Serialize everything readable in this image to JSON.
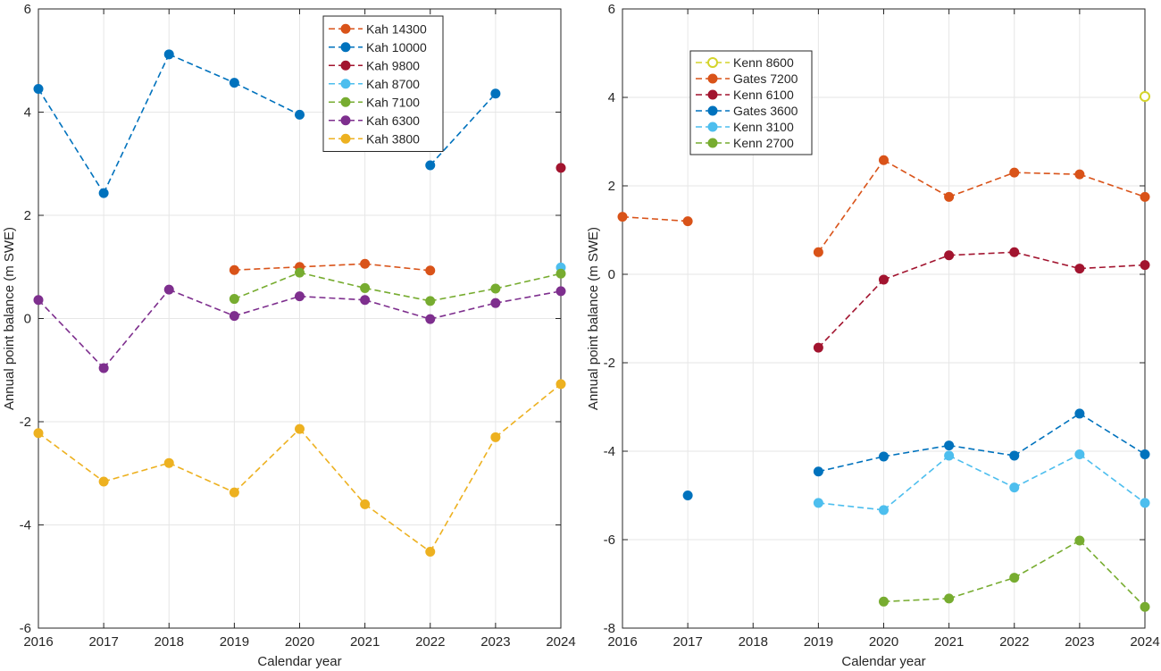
{
  "chart_data": [
    {
      "type": "line",
      "xlabel": "Calendar year",
      "ylabel": "Annual point balance (m SWE)",
      "xlim": [
        2016,
        2024
      ],
      "ylim": [
        -6,
        6
      ],
      "xticks": [
        "2016",
        "2017",
        "2018",
        "2019",
        "2020",
        "2021",
        "2022",
        "2023",
        "2024"
      ],
      "yticks": [
        "-6",
        "-4",
        "-2",
        "0",
        "2",
        "4",
        "6"
      ],
      "grid": true,
      "legend_position": "top-right",
      "x": [
        2016,
        2017,
        2018,
        2019,
        2020,
        2021,
        2022,
        2023,
        2024
      ],
      "series": [
        {
          "name": "Kah 14300",
          "color": "#D95319",
          "hollow": false,
          "values": [
            null,
            null,
            null,
            0.94,
            1.0,
            1.06,
            0.93,
            null,
            null
          ]
        },
        {
          "name": "Kah 10000",
          "color": "#0072BD",
          "hollow": false,
          "values": [
            4.45,
            2.43,
            5.12,
            4.57,
            3.95,
            null,
            2.97,
            4.36,
            null
          ]
        },
        {
          "name": "Kah 9800",
          "color": "#A2142F",
          "hollow": false,
          "values": [
            null,
            null,
            null,
            null,
            null,
            null,
            null,
            null,
            2.92
          ]
        },
        {
          "name": "Kah 8700",
          "color": "#4DBEEE",
          "hollow": false,
          "values": [
            null,
            null,
            null,
            null,
            null,
            null,
            null,
            null,
            0.99
          ]
        },
        {
          "name": "Kah 7100",
          "color": "#77AC30",
          "hollow": false,
          "values": [
            null,
            null,
            null,
            0.38,
            0.89,
            0.59,
            0.34,
            0.58,
            0.87
          ]
        },
        {
          "name": "Kah 6300",
          "color": "#7E2F8E",
          "hollow": false,
          "values": [
            0.36,
            -0.96,
            0.56,
            0.05,
            0.43,
            0.36,
            -0.01,
            0.3,
            0.53
          ]
        },
        {
          "name": "Kah 3800",
          "color": "#EDB120",
          "hollow": false,
          "values": [
            -2.22,
            -3.16,
            -2.8,
            -3.37,
            -2.14,
            -3.6,
            -4.52,
            -2.3,
            -1.27
          ]
        }
      ]
    },
    {
      "type": "line",
      "xlabel": "Calendar year",
      "ylabel": "Annual point balance (m SWE)",
      "xlim": [
        2016,
        2024
      ],
      "ylim": [
        -8,
        6
      ],
      "xticks": [
        "2016",
        "2017",
        "2018",
        "2019",
        "2020",
        "2021",
        "2022",
        "2023",
        "2024"
      ],
      "yticks": [
        "-8",
        "-6",
        "-4",
        "-2",
        "0",
        "2",
        "4",
        "6"
      ],
      "grid": true,
      "legend_position": "top-left",
      "x": [
        2016,
        2017,
        2018,
        2019,
        2020,
        2021,
        2022,
        2023,
        2024
      ],
      "series": [
        {
          "name": "Kenn 8600",
          "color": "#D4D42A",
          "hollow": true,
          "values": [
            null,
            null,
            null,
            null,
            null,
            null,
            null,
            null,
            4.02
          ]
        },
        {
          "name": "Gates 7200",
          "color": "#D95319",
          "hollow": false,
          "values": [
            1.3,
            1.2,
            null,
            0.5,
            2.58,
            1.75,
            2.3,
            2.26,
            1.75
          ]
        },
        {
          "name": "Kenn 6100",
          "color": "#A2142F",
          "hollow": false,
          "values": [
            null,
            null,
            null,
            -1.66,
            -0.12,
            0.43,
            0.5,
            0.13,
            0.21
          ]
        },
        {
          "name": "Gates 3600",
          "color": "#0072BD",
          "hollow": false,
          "values": [
            null,
            -5.0,
            null,
            -4.46,
            -4.12,
            -3.87,
            -4.1,
            -3.15,
            -4.07
          ]
        },
        {
          "name": "Kenn 3100",
          "color": "#4DBEEE",
          "hollow": false,
          "values": [
            null,
            null,
            null,
            -5.17,
            -5.33,
            -4.1,
            -4.82,
            -4.07,
            -5.17
          ]
        },
        {
          "name": "Kenn 2700",
          "color": "#77AC30",
          "hollow": false,
          "values": [
            null,
            null,
            null,
            null,
            -7.4,
            -7.33,
            -6.86,
            -6.02,
            -7.52
          ]
        }
      ]
    }
  ]
}
